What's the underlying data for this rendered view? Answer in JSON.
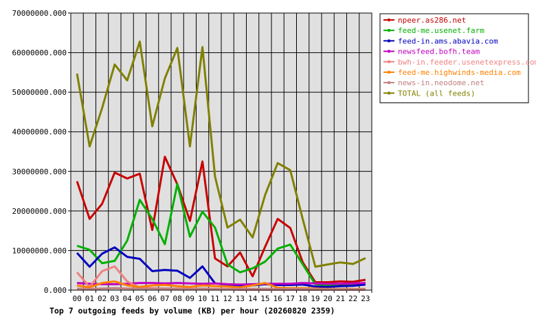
{
  "chart_data": {
    "type": "line",
    "title": "Top 7 outgoing feeds by volume (KB) per hour (20260820 2359)",
    "xlabel": "",
    "ylabel": "",
    "x": [
      "00",
      "01",
      "02",
      "03",
      "04",
      "05",
      "06",
      "07",
      "08",
      "09",
      "10",
      "11",
      "12",
      "13",
      "14",
      "15",
      "16",
      "17",
      "18",
      "19",
      "20",
      "21",
      "22",
      "23"
    ],
    "ylim": [
      0,
      70000000
    ],
    "y_ticks": [
      "0.000",
      "10000000.000",
      "20000000.000",
      "30000000.000",
      "40000000.000",
      "50000000.000",
      "60000000.000",
      "70000000.000"
    ],
    "grid": true,
    "legend_placement": "right",
    "background": "#e0e0e0",
    "series": [
      {
        "name": "npeer.as286.net",
        "color": "#c80000",
        "values": [
          27500000,
          18000000,
          21800000,
          29700000,
          28200000,
          29400000,
          15200000,
          33700000,
          26700000,
          17500000,
          32500000,
          8000000,
          6000000,
          9500000,
          3500000,
          11000000,
          18000000,
          15700000,
          7000000,
          2000000,
          2000000,
          2200000,
          2100000,
          2600000
        ]
      },
      {
        "name": "feed-me.usenet.farm",
        "color": "#00b000",
        "values": [
          11200000,
          10200000,
          6800000,
          7400000,
          12500000,
          22800000,
          18000000,
          11600000,
          26800000,
          13500000,
          19800000,
          15800000,
          6500000,
          4500000,
          5500000,
          7200000,
          10500000,
          11500000,
          6500000,
          1500000,
          1300000,
          1500000,
          1400000,
          1800000
        ]
      },
      {
        "name": "feed-in.ams.abavia.com",
        "color": "#0000c0",
        "values": [
          9400000,
          5900000,
          9200000,
          10800000,
          8400000,
          7900000,
          4800000,
          5100000,
          4900000,
          3100000,
          6000000,
          1700000,
          1400000,
          1200000,
          1200000,
          1500000,
          1300000,
          1300000,
          1400000,
          900000,
          800000,
          1000000,
          1100000,
          1400000
        ]
      },
      {
        "name": "newsfeed.bofh.team",
        "color": "#c000c0",
        "values": [
          1800000,
          1600000,
          1500000,
          1500000,
          1600000,
          1800000,
          1800000,
          1700000,
          1800000,
          1700000,
          1600000,
          1700000,
          1500000,
          1400000,
          1500000,
          1600000,
          1600000,
          1600000,
          1800000,
          1700000,
          1600000,
          1600000,
          1700000,
          1800000
        ]
      },
      {
        "name": "bwh-in.feeder.usenetexpress.com",
        "color": "#f08080",
        "values": [
          4500000,
          800000,
          4800000,
          6000000,
          2200000,
          600000,
          500000,
          400000,
          300000,
          300000,
          200000,
          200000,
          200000,
          100000,
          100000,
          100000,
          100000,
          100000,
          100000,
          100000,
          100000,
          100000,
          100000,
          100000
        ]
      },
      {
        "name": "feed-me.highwinds-media.com",
        "color": "#ff8000",
        "values": [
          1200000,
          700000,
          1800000,
          2200000,
          1200000,
          800000,
          1200000,
          1300000,
          1000000,
          800000,
          1200000,
          1000000,
          900000,
          700000,
          1200000,
          1800000,
          600000,
          500000,
          500000,
          400000,
          300000,
          300000,
          300000,
          300000
        ]
      },
      {
        "name": "news-in.neodome.net",
        "color": "#c08080",
        "values": [
          400000,
          300000,
          400000,
          500000,
          400000,
          400000,
          400000,
          400000,
          400000,
          300000,
          400000,
          300000,
          300000,
          300000,
          300000,
          300000,
          300000,
          300000,
          300000,
          200000,
          200000,
          200000,
          200000,
          200000
        ]
      },
      {
        "name": "TOTAL (all feeds)",
        "color": "#808000",
        "values": [
          54700000,
          36300000,
          46000000,
          57000000,
          53000000,
          62800000,
          41400000,
          53500000,
          61200000,
          36300000,
          61400000,
          28700000,
          15800000,
          17800000,
          13300000,
          24100000,
          32100000,
          30300000,
          17900000,
          5900000,
          6500000,
          7000000,
          6600000,
          8100000
        ]
      }
    ]
  }
}
